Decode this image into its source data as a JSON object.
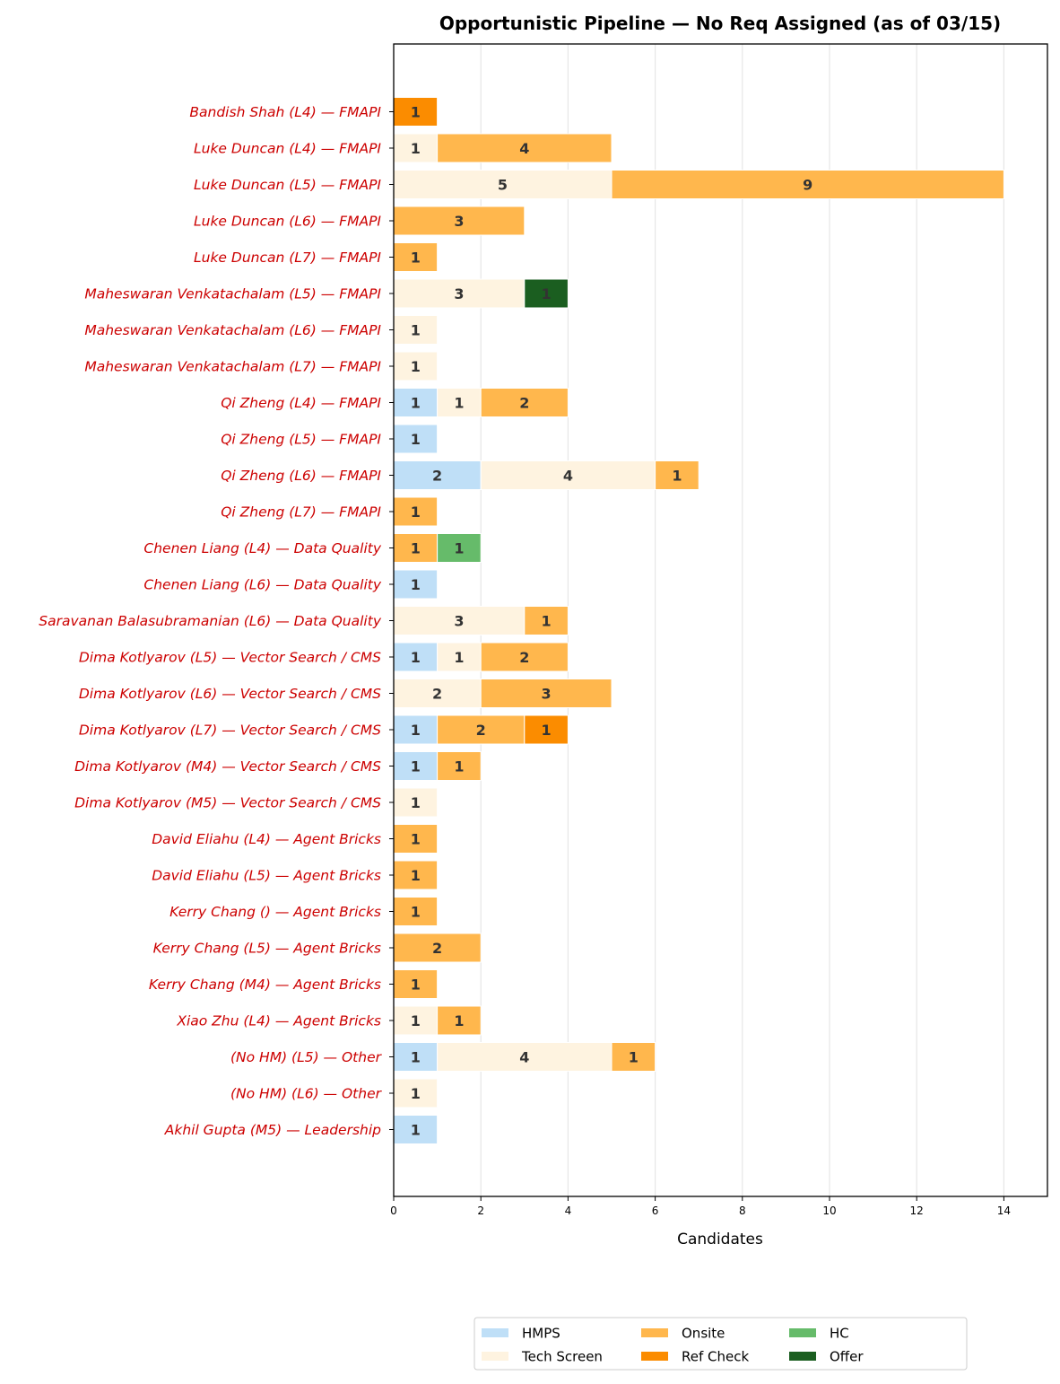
{
  "chart_data": {
    "type": "bar",
    "orientation": "horizontal",
    "stacked": true,
    "title": "Opportunistic Pipeline — No Req Assigned (as of 03/15)",
    "xlabel": "Candidates",
    "ylabel": "",
    "xlim": [
      0,
      15
    ],
    "xticks": [
      "0",
      "2",
      "4",
      "6",
      "8",
      "10",
      "12",
      "14"
    ],
    "grid": "vertical",
    "legend_position": "bottom",
    "categories": [
      "Bandish Shah (L4) — FMAPI",
      "Luke Duncan (L4) — FMAPI",
      "Luke Duncan (L5) — FMAPI",
      "Luke Duncan (L6) — FMAPI",
      "Luke Duncan (L7) — FMAPI",
      "Maheswaran Venkatachalam (L5) — FMAPI",
      "Maheswaran Venkatachalam (L6) — FMAPI",
      "Maheswaran Venkatachalam (L7) — FMAPI",
      "Qi Zheng (L4) — FMAPI",
      "Qi Zheng (L5) — FMAPI",
      "Qi Zheng (L6) — FMAPI",
      "Qi Zheng (L7) — FMAPI",
      "Chenen Liang (L4) — Data Quality",
      "Chenen Liang (L6) — Data Quality",
      "Saravanan Balasubramanian (L6) — Data Quality",
      "Dima Kotlyarov (L5) — Vector Search / CMS",
      "Dima Kotlyarov (L6) — Vector Search / CMS",
      "Dima Kotlyarov (L7) — Vector Search / CMS",
      "Dima Kotlyarov (M4) — Vector Search / CMS",
      "Dima Kotlyarov (M5) — Vector Search / CMS",
      "David Eliahu (L4) — Agent Bricks",
      "David Eliahu (L5) — Agent Bricks",
      "Kerry Chang () — Agent Bricks",
      "Kerry Chang (L5) — Agent Bricks",
      "Kerry Chang (M4) — Agent Bricks",
      "Xiao Zhu (L4) — Agent Bricks",
      "(No HM) (L5) — Other",
      "(No HM) (L6) — Other",
      "Akhil Gupta (M5) — Leadership"
    ],
    "series": [
      {
        "name": "HMPS",
        "color": "#bfdff7",
        "values": [
          0,
          0,
          0,
          0,
          0,
          0,
          0,
          0,
          1,
          1,
          2,
          0,
          0,
          1,
          0,
          1,
          0,
          1,
          1,
          0,
          0,
          0,
          0,
          0,
          0,
          0,
          1,
          0,
          1
        ]
      },
      {
        "name": "Tech Screen",
        "color": "#fef3e0",
        "values": [
          0,
          1,
          5,
          0,
          0,
          3,
          1,
          1,
          1,
          0,
          4,
          0,
          0,
          0,
          3,
          1,
          2,
          0,
          0,
          1,
          0,
          0,
          0,
          0,
          0,
          1,
          4,
          1,
          0
        ]
      },
      {
        "name": "Onsite",
        "color": "#ffb74d",
        "values": [
          0,
          4,
          9,
          3,
          1,
          0,
          0,
          0,
          2,
          0,
          1,
          1,
          1,
          0,
          1,
          2,
          3,
          2,
          1,
          0,
          1,
          1,
          1,
          2,
          1,
          1,
          1,
          0,
          0
        ]
      },
      {
        "name": "Ref Check",
        "color": "#fb8c00",
        "values": [
          1,
          0,
          0,
          0,
          0,
          0,
          0,
          0,
          0,
          0,
          0,
          0,
          0,
          0,
          0,
          0,
          0,
          1,
          0,
          0,
          0,
          0,
          0,
          0,
          0,
          0,
          0,
          0,
          0
        ]
      },
      {
        "name": "HC",
        "color": "#66bb6a",
        "values": [
          0,
          0,
          0,
          0,
          0,
          0,
          0,
          0,
          0,
          0,
          0,
          0,
          1,
          0,
          0,
          0,
          0,
          0,
          0,
          0,
          0,
          0,
          0,
          0,
          0,
          0,
          0,
          0,
          0
        ]
      },
      {
        "name": "Offer",
        "color": "#1b5e20",
        "values": [
          0,
          0,
          0,
          0,
          0,
          1,
          0,
          0,
          0,
          0,
          0,
          0,
          0,
          0,
          0,
          0,
          0,
          0,
          0,
          0,
          0,
          0,
          0,
          0,
          0,
          0,
          0,
          0,
          0
        ]
      }
    ]
  }
}
